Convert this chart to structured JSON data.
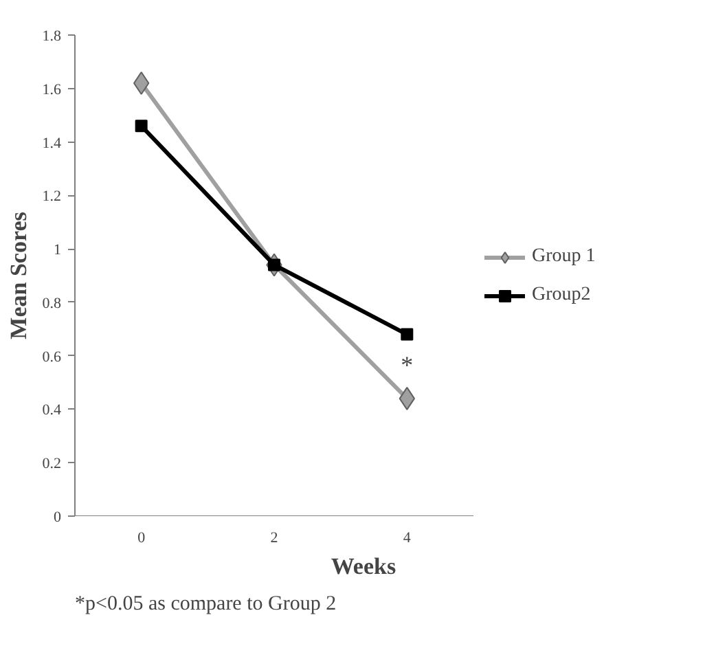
{
  "chart_data": {
    "type": "line",
    "xlabel": "Weeks",
    "ylabel": "Mean Scores",
    "categories": [
      "0",
      "2",
      "4"
    ],
    "series": [
      {
        "name": "Group 1",
        "color": "#a0a0a0",
        "marker": "diamond",
        "values": [
          1.62,
          0.94,
          0.44
        ]
      },
      {
        "name": "Group2",
        "color": "#000000",
        "marker": "square",
        "values": [
          1.46,
          0.94,
          0.68
        ]
      }
    ],
    "ylim": [
      0,
      1.8
    ],
    "yticks": [
      0,
      0.2,
      0.4,
      0.6,
      0.8,
      1,
      1.2,
      1.4,
      1.6,
      1.8
    ],
    "grid": false,
    "legend": "right",
    "annotations": [
      {
        "text": "*",
        "x": "4",
        "y": 0.68
      },
      "*p<0.05 as compare to Group 2"
    ]
  }
}
